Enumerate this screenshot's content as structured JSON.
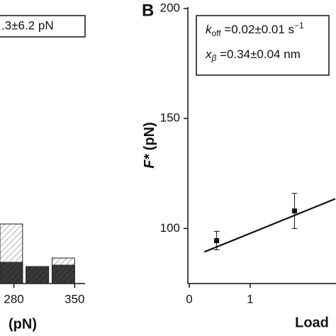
{
  "chart_data": [
    {
      "type": "bar",
      "annotation": ".3±6.2 pN",
      "xlabel": "(pN)",
      "x": [
        277,
        307,
        337
      ],
      "width": 26,
      "series": [
        {
          "color": "#ffffff",
          "hatch": "#555555",
          "values": [
            84,
            24,
            36
          ]
        },
        {
          "color": "#333333",
          "values": [
            30,
            24,
            26
          ]
        }
      ],
      "xlim": [
        264,
        362
      ],
      "xticks": [
        280,
        350
      ],
      "ylim": [
        0,
        100
      ]
    },
    {
      "type": "scatter",
      "panel_label": "B",
      "xlabel": "Load",
      "ylabel": [
        "F*",
        " (pN)"
      ],
      "annotation": [
        [
          "k",
          "off",
          " =0.02±0.01 s",
          "−1"
        ],
        [
          "x",
          "β",
          " =0.34±0.04 nm"
        ]
      ],
      "series": [
        {
          "color": "#111111",
          "x": [
            0.45,
            1.73
          ],
          "values": [
            94.5,
            108
          ],
          "errors": [
            4.2,
            8
          ]
        }
      ],
      "fit": {
        "color": "#111111",
        "x": [
          0.25,
          2.4
        ],
        "values": [
          89.4,
          113.5
        ]
      },
      "xlim": [
        0,
        2.4
      ],
      "xticks": [
        0,
        1
      ],
      "ylim": [
        75,
        200
      ],
      "yticks": [
        100,
        150,
        200
      ]
    }
  ]
}
